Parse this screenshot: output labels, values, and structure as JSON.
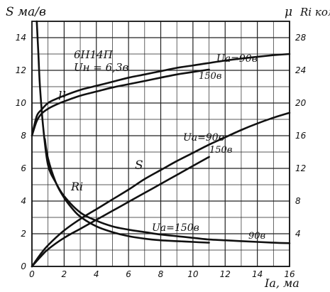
{
  "chart_data": {
    "type": "line",
    "title": "6Н14П",
    "subtitle": "Uн = 6,3в",
    "xlabel": "Iа, ма",
    "ylabel_left": "S ма/в",
    "ylabel_right_mu": "μ",
    "ylabel_right_ri": "Ri ком",
    "xlim": [
      0,
      16
    ],
    "ylim_left": [
      0,
      15
    ],
    "ylim_right": [
      0,
      30
    ],
    "xticks": [
      "0",
      "2",
      "4",
      "6",
      "8",
      "10",
      "12",
      "14",
      "16"
    ],
    "yticks_left": [
      "0",
      "2",
      "4",
      "6",
      "8",
      "10",
      "12",
      "14"
    ],
    "yticks_right": [
      "4",
      "8",
      "12",
      "16",
      "20",
      "24",
      "28"
    ],
    "grid": true,
    "series": [
      {
        "name": "μ",
        "group": "μ",
        "axis": "left",
        "label": "Uа=90в",
        "x": [
          0,
          0.3,
          0.6,
          1,
          1.5,
          2,
          3,
          4,
          5,
          6,
          7,
          8,
          9,
          10,
          11,
          12,
          13,
          14,
          15,
          16
        ],
        "y": [
          8.0,
          9.2,
          9.6,
          10.0,
          10.25,
          10.45,
          10.8,
          11.05,
          11.3,
          11.55,
          11.75,
          11.95,
          12.15,
          12.3,
          12.45,
          12.6,
          12.72,
          12.83,
          12.93,
          13.0
        ]
      },
      {
        "name": "μ",
        "group": "μ",
        "axis": "left",
        "label": "150в",
        "x": [
          0,
          0.3,
          0.6,
          1,
          1.5,
          2,
          3,
          4,
          5,
          6,
          7,
          8,
          9,
          10,
          11
        ],
        "y": [
          8.0,
          8.9,
          9.35,
          9.65,
          9.9,
          10.1,
          10.45,
          10.7,
          10.95,
          11.15,
          11.35,
          11.55,
          11.75,
          11.9,
          12.05
        ]
      },
      {
        "name": "S",
        "group": "S",
        "axis": "left",
        "label": "Uа=90в",
        "x": [
          0,
          0.5,
          1,
          2,
          3,
          4,
          5,
          6,
          7,
          8,
          9,
          10,
          11,
          12,
          13,
          14,
          15,
          16
        ],
        "y": [
          0,
          0.7,
          1.3,
          2.2,
          2.9,
          3.5,
          4.1,
          4.7,
          5.35,
          5.9,
          6.45,
          6.95,
          7.45,
          7.9,
          8.35,
          8.75,
          9.1,
          9.4
        ]
      },
      {
        "name": "S",
        "group": "S",
        "axis": "left",
        "label": "150в",
        "x": [
          0,
          0.5,
          1,
          2,
          3,
          4,
          5,
          6,
          7,
          8,
          9,
          10,
          11
        ],
        "y": [
          0,
          0.55,
          1.05,
          1.75,
          2.3,
          2.85,
          3.4,
          3.95,
          4.5,
          5.05,
          5.6,
          6.15,
          6.7
        ]
      },
      {
        "name": "Ri",
        "group": "Ri",
        "axis": "left",
        "label": "Uа=150в",
        "x": [
          0.8,
          1,
          1.5,
          2,
          2.5,
          3,
          4,
          5,
          6,
          7,
          8,
          9,
          10,
          11
        ],
        "y": [
          7.8,
          6.6,
          5.1,
          4.2,
          3.55,
          3.05,
          2.45,
          2.1,
          1.85,
          1.7,
          1.6,
          1.55,
          1.5,
          1.45
        ]
      },
      {
        "name": "Ri",
        "group": "Ri",
        "axis": "left",
        "label": "90в",
        "x": [
          0.3,
          0.4,
          0.5,
          0.7,
          1,
          1.5,
          2,
          3,
          4,
          5,
          6,
          7,
          8,
          9,
          10,
          11,
          12,
          13,
          14,
          15,
          16
        ],
        "y": [
          15,
          13,
          11,
          8.5,
          6.2,
          5.1,
          4.3,
          3.3,
          2.8,
          2.45,
          2.25,
          2.1,
          1.95,
          1.85,
          1.75,
          1.65,
          1.6,
          1.55,
          1.5,
          1.45,
          1.42
        ]
      }
    ],
    "annotations": {
      "tube": "6Н14П",
      "heater": "Uн = 6,3в",
      "mu_label": "μ",
      "s_label": "S",
      "ri_label": "Ri",
      "mu_90": "Uа=90в",
      "mu_150": "150в",
      "s_90": "Uа=90в",
      "s_150": "150в",
      "ri_150": "Uа=150в",
      "ri_90": "90в"
    }
  }
}
